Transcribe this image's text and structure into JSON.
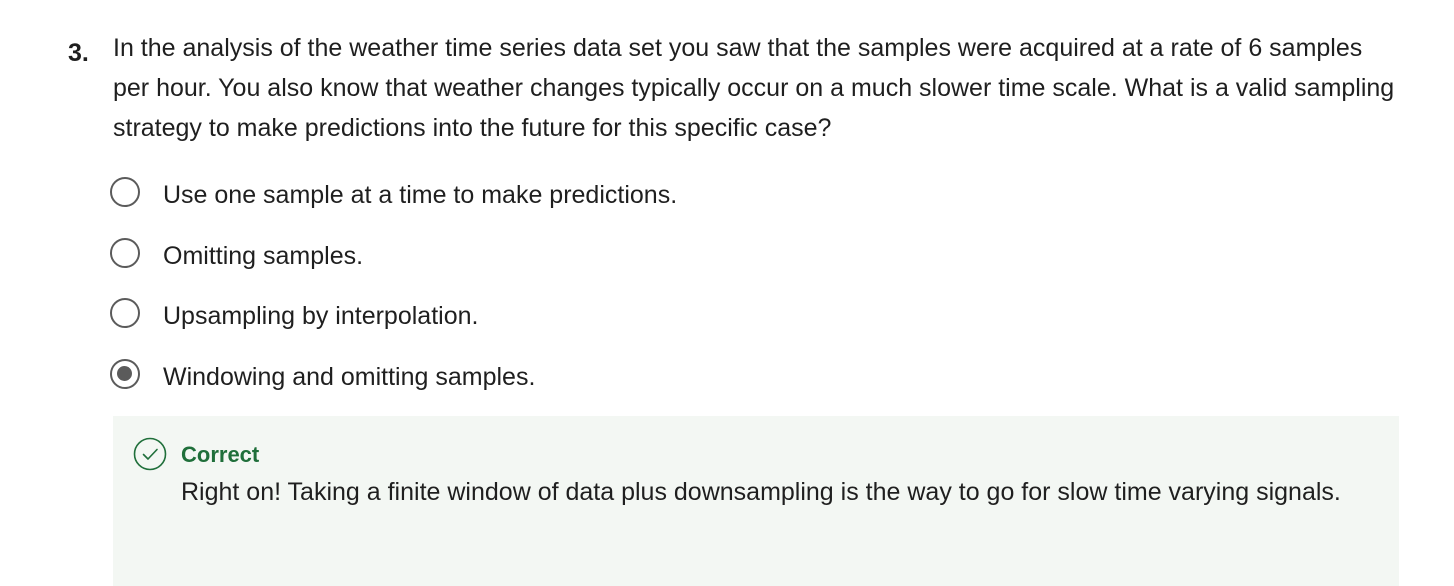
{
  "question": {
    "number": "3.",
    "text": "In the analysis of the weather time series data set you saw that the samples were acquired at a rate of 6 samples per hour. You also know that weather changes typically occur on a much slower time scale. What is a valid sampling strategy to make predictions into the future for this specific case?"
  },
  "options": [
    {
      "label": "Use one sample at a time to make predictions.",
      "selected": false
    },
    {
      "label": "Omitting samples.",
      "selected": false
    },
    {
      "label": "Upsampling by interpolation.",
      "selected": false
    },
    {
      "label": "Windowing and omitting samples.",
      "selected": true
    }
  ],
  "feedback": {
    "status": "Correct",
    "message": "Right on! Taking a finite window of data plus downsampling is the way to go for slow time varying signals.",
    "icon": "check-circle-icon",
    "status_color": "#1f6f3a",
    "background_color": "#f3f7f3"
  }
}
